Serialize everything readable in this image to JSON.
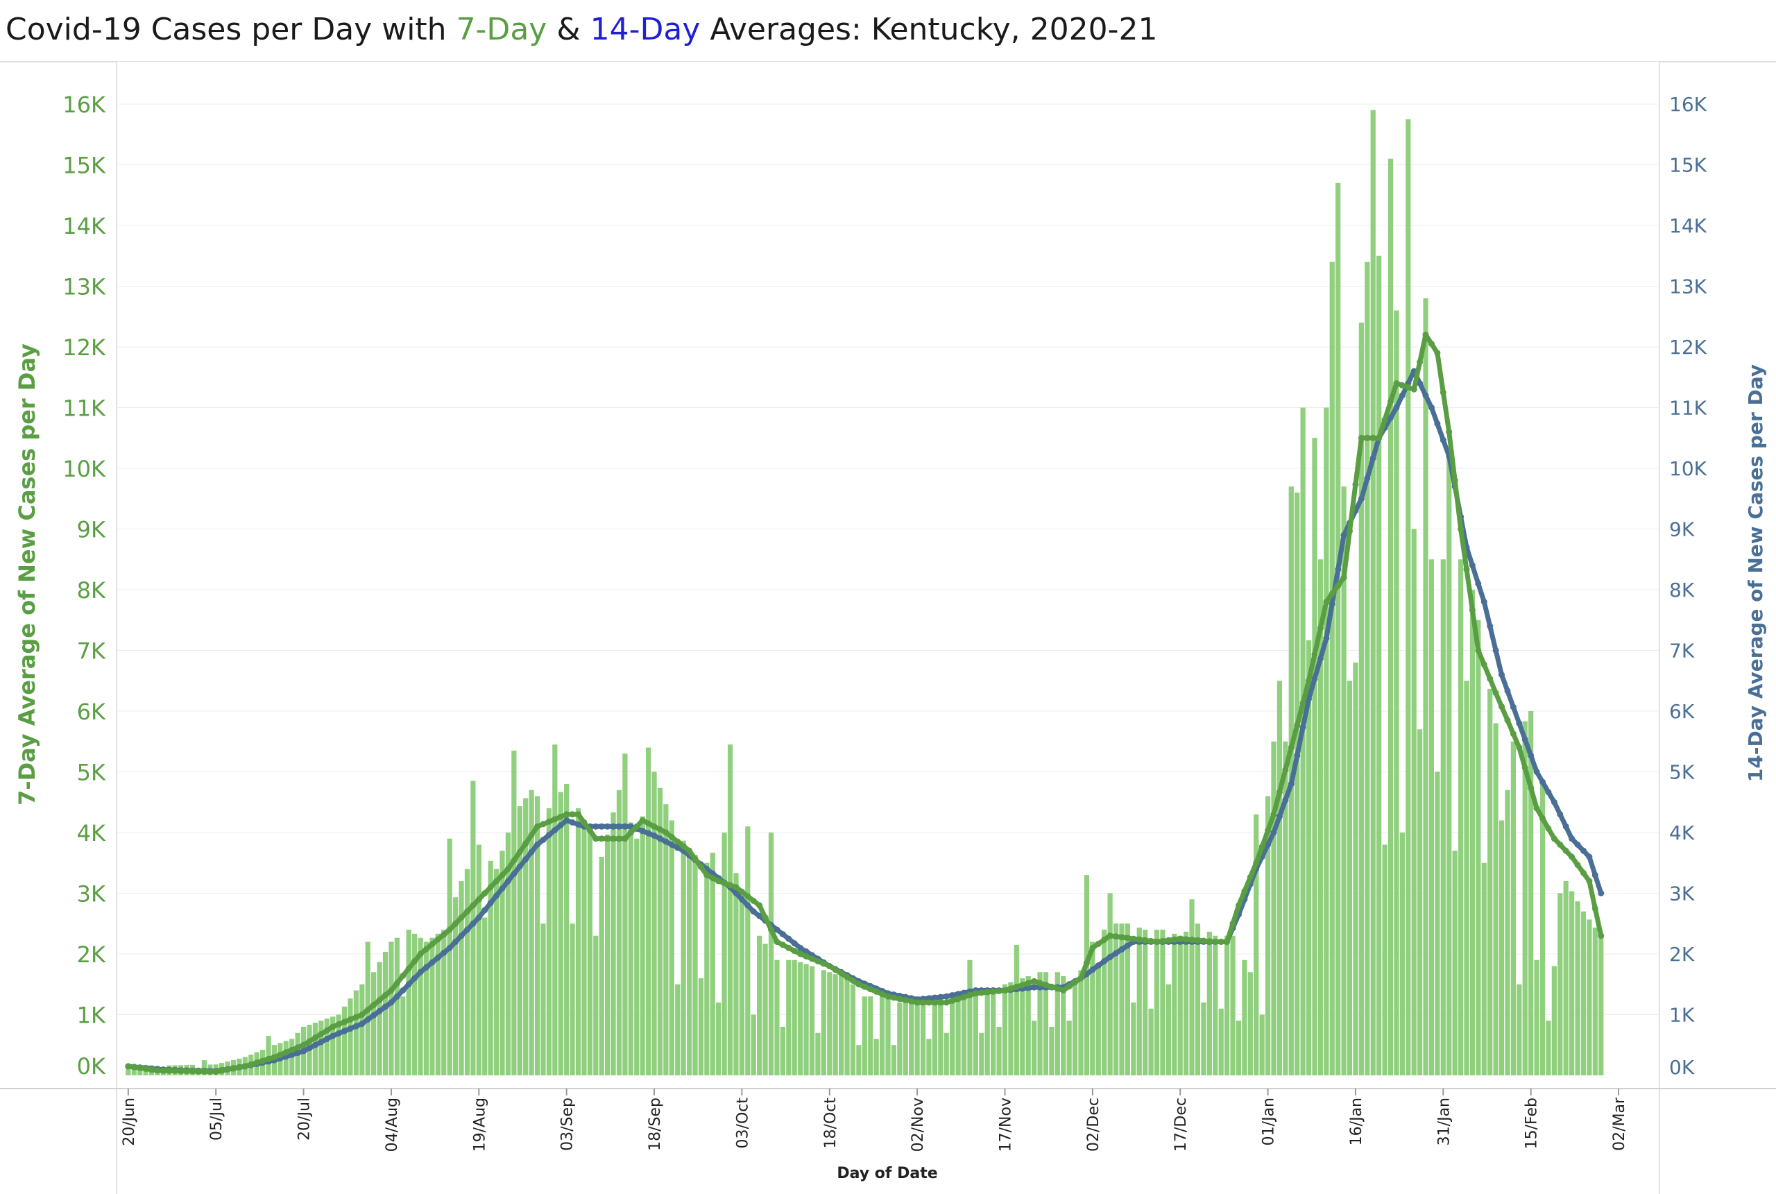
{
  "title": {
    "prefix": "Covid-19 Cases per Day with ",
    "seven_day": "7-Day",
    "amp": " & ",
    "fourteen_day": "14-Day",
    "suffix": " Averages: Kentucky,  2020-21"
  },
  "chart_data": {
    "type": "bar+line",
    "title": "Covid-19 Cases per Day with 7-Day & 14-Day Averages: Kentucky,  2020-21",
    "xlabel": "Day of Date",
    "ylabel_left": "7-Day Average of New Cases per Day",
    "ylabel_right": "14-Day Average of New Cases per Day",
    "ylim": [
      0,
      16000
    ],
    "y_ticks": [
      0,
      1000,
      2000,
      3000,
      4000,
      5000,
      6000,
      7000,
      8000,
      9000,
      10000,
      11000,
      12000,
      13000,
      14000,
      15000,
      16000
    ],
    "y_tick_labels": [
      "0K",
      "1K",
      "2K",
      "3K",
      "4K",
      "5K",
      "6K",
      "7K",
      "8K",
      "9K",
      "10K",
      "11K",
      "12K",
      "13K",
      "14K",
      "15K",
      "16K"
    ],
    "x_ticks": [
      {
        "day": 0,
        "label": "20/Jun"
      },
      {
        "day": 15,
        "label": "05/Jul"
      },
      {
        "day": 30,
        "label": "20/Jul"
      },
      {
        "day": 45,
        "label": "04/Aug"
      },
      {
        "day": 60,
        "label": "19/Aug"
      },
      {
        "day": 75,
        "label": "03/Sep"
      },
      {
        "day": 90,
        "label": "18/Sep"
      },
      {
        "day": 105,
        "label": "03/Oct"
      },
      {
        "day": 120,
        "label": "18/Oct"
      },
      {
        "day": 135,
        "label": "02/Nov"
      },
      {
        "day": 150,
        "label": "17/Nov"
      },
      {
        "day": 165,
        "label": "02/Dec"
      },
      {
        "day": 180,
        "label": "17/Dec"
      },
      {
        "day": 195,
        "label": "01/Jan"
      },
      {
        "day": 210,
        "label": "16/Jan"
      },
      {
        "day": 225,
        "label": "31/Jan"
      },
      {
        "day": 240,
        "label": "15/Feb"
      },
      {
        "day": 255,
        "label": "02/Mar"
      }
    ],
    "x_domain_days": [
      -2,
      262
    ],
    "grid": true,
    "colors": {
      "bars": "#8fcf7d",
      "seven_day": "#5a9e43",
      "fourteen_day": "#4a6f96"
    },
    "daily_cases_anchors": [
      [
        0,
        180
      ],
      [
        5,
        160
      ],
      [
        10,
        170
      ],
      [
        15,
        180
      ],
      [
        20,
        300
      ],
      [
        25,
        500
      ],
      [
        28,
        600
      ],
      [
        30,
        800
      ],
      [
        33,
        900
      ],
      [
        36,
        1000
      ],
      [
        39,
        1400
      ],
      [
        42,
        1700
      ],
      [
        45,
        2200
      ],
      [
        48,
        2400
      ],
      [
        51,
        2200
      ],
      [
        54,
        2400
      ],
      [
        57,
        3200
      ],
      [
        60,
        3800
      ],
      [
        63,
        3400
      ],
      [
        66,
        4300
      ],
      [
        69,
        4700
      ],
      [
        72,
        4400
      ],
      [
        75,
        4800
      ],
      [
        78,
        4200
      ],
      [
        81,
        3600
      ],
      [
        84,
        4700
      ],
      [
        87,
        3900
      ],
      [
        90,
        5000
      ],
      [
        93,
        4200
      ],
      [
        96,
        3700
      ],
      [
        99,
        3500
      ],
      [
        102,
        4000
      ],
      [
        105,
        3000
      ],
      [
        108,
        2300
      ],
      [
        111,
        1900
      ],
      [
        114,
        1900
      ],
      [
        117,
        1800
      ],
      [
        120,
        1700
      ],
      [
        123,
        1600
      ],
      [
        126,
        1300
      ],
      [
        129,
        1300
      ],
      [
        132,
        1200
      ],
      [
        135,
        1300
      ],
      [
        138,
        1300
      ],
      [
        141,
        1200
      ],
      [
        144,
        1400
      ],
      [
        147,
        1400
      ],
      [
        150,
        1500
      ],
      [
        153,
        1600
      ],
      [
        156,
        1700
      ],
      [
        159,
        1700
      ],
      [
        162,
        1500
      ],
      [
        165,
        2200
      ],
      [
        168,
        2500
      ],
      [
        171,
        2500
      ],
      [
        174,
        2400
      ],
      [
        177,
        2400
      ],
      [
        180,
        2300
      ],
      [
        183,
        2500
      ],
      [
        186,
        2300
      ],
      [
        189,
        2300
      ],
      [
        192,
        1700
      ],
      [
        195,
        4600
      ],
      [
        198,
        5500
      ],
      [
        201,
        6500
      ],
      [
        204,
        8500
      ],
      [
        207,
        8800
      ],
      [
        210,
        11500
      ],
      [
        213,
        8500
      ],
      [
        216,
        10500
      ],
      [
        219,
        12200
      ],
      [
        222,
        12800
      ],
      [
        225,
        11000
      ],
      [
        228,
        8500
      ],
      [
        231,
        7500
      ],
      [
        234,
        5800
      ],
      [
        237,
        5500
      ],
      [
        240,
        6000
      ],
      [
        243,
        4200
      ],
      [
        246,
        3200
      ],
      [
        249,
        2700
      ],
      [
        252,
        2300
      ]
    ],
    "daily_cases_spikes": [
      [
        6,
        100
      ],
      [
        13,
        250
      ],
      [
        24,
        650
      ],
      [
        41,
        2200
      ],
      [
        55,
        3900
      ],
      [
        59,
        4850
      ],
      [
        66,
        5350
      ],
      [
        73,
        5450
      ],
      [
        85,
        5300
      ],
      [
        89,
        5400
      ],
      [
        103,
        5450
      ],
      [
        106,
        4100
      ],
      [
        110,
        4000
      ],
      [
        144,
        1900
      ],
      [
        152,
        2150
      ],
      [
        164,
        3300
      ],
      [
        168,
        3000
      ],
      [
        182,
        2900
      ],
      [
        193,
        4300
      ],
      [
        196,
        5500
      ],
      [
        197,
        6500
      ],
      [
        199,
        9700
      ],
      [
        200,
        9600
      ],
      [
        201,
        11000
      ],
      [
        203,
        10500
      ],
      [
        205,
        11000
      ],
      [
        206,
        13400
      ],
      [
        207,
        14700
      ],
      [
        209,
        6500
      ],
      [
        211,
        12400
      ],
      [
        212,
        13400
      ],
      [
        213,
        15900
      ],
      [
        214,
        13500
      ],
      [
        215,
        3800
      ],
      [
        216,
        15100
      ],
      [
        217,
        12600
      ],
      [
        219,
        15750
      ],
      [
        220,
        9000
      ],
      [
        221,
        5700
      ],
      [
        223,
        8500
      ],
      [
        225,
        8500
      ],
      [
        229,
        6500
      ],
      [
        230,
        8000
      ],
      [
        235,
        4200
      ],
      [
        236,
        4700
      ],
      [
        238,
        1500
      ],
      [
        243,
        900
      ],
      [
        245,
        3000
      ]
    ],
    "daily_cases_dips": [
      [
        12,
        80
      ],
      [
        47,
        1300
      ],
      [
        61,
        2600
      ],
      [
        71,
        2500
      ],
      [
        76,
        2500
      ],
      [
        80,
        2300
      ],
      [
        94,
        1500
      ],
      [
        98,
        1600
      ],
      [
        101,
        1200
      ],
      [
        107,
        1000
      ],
      [
        112,
        800
      ],
      [
        118,
        700
      ],
      [
        125,
        500
      ],
      [
        128,
        600
      ],
      [
        131,
        500
      ],
      [
        137,
        600
      ],
      [
        140,
        700
      ],
      [
        146,
        700
      ],
      [
        149,
        800
      ],
      [
        155,
        900
      ],
      [
        158,
        800
      ],
      [
        161,
        900
      ],
      [
        166,
        1800
      ],
      [
        172,
        1200
      ],
      [
        175,
        1100
      ],
      [
        178,
        1500
      ],
      [
        184,
        1200
      ],
      [
        187,
        1100
      ],
      [
        190,
        900
      ],
      [
        194,
        1000
      ],
      [
        210,
        6800
      ],
      [
        218,
        4000
      ],
      [
        224,
        5000
      ],
      [
        227,
        3700
      ],
      [
        232,
        3500
      ],
      [
        241,
        1900
      ],
      [
        244,
        1800
      ]
    ],
    "avg7_anchors": [
      [
        0,
        150
      ],
      [
        5,
        80
      ],
      [
        10,
        70
      ],
      [
        15,
        60
      ],
      [
        20,
        150
      ],
      [
        25,
        300
      ],
      [
        30,
        500
      ],
      [
        35,
        800
      ],
      [
        40,
        1000
      ],
      [
        45,
        1400
      ],
      [
        50,
        2000
      ],
      [
        55,
        2400
      ],
      [
        60,
        2900
      ],
      [
        65,
        3400
      ],
      [
        70,
        4100
      ],
      [
        75,
        4300
      ],
      [
        77,
        4300
      ],
      [
        80,
        3900
      ],
      [
        85,
        3900
      ],
      [
        88,
        4200
      ],
      [
        92,
        4000
      ],
      [
        96,
        3700
      ],
      [
        99,
        3300
      ],
      [
        101,
        3200
      ],
      [
        104,
        3100
      ],
      [
        108,
        2800
      ],
      [
        111,
        2200
      ],
      [
        115,
        2000
      ],
      [
        120,
        1800
      ],
      [
        125,
        1500
      ],
      [
        130,
        1300
      ],
      [
        135,
        1200
      ],
      [
        140,
        1200
      ],
      [
        145,
        1350
      ],
      [
        150,
        1400
      ],
      [
        155,
        1550
      ],
      [
        160,
        1400
      ],
      [
        163,
        1600
      ],
      [
        165,
        2100
      ],
      [
        168,
        2300
      ],
      [
        172,
        2250
      ],
      [
        176,
        2200
      ],
      [
        180,
        2250
      ],
      [
        186,
        2200
      ],
      [
        188,
        2200
      ],
      [
        190,
        2800
      ],
      [
        193,
        3500
      ],
      [
        196,
        4300
      ],
      [
        199,
        5400
      ],
      [
        202,
        6500
      ],
      [
        205,
        7800
      ],
      [
        208,
        8200
      ],
      [
        211,
        10500
      ],
      [
        214,
        10500
      ],
      [
        217,
        11400
      ],
      [
        220,
        11300
      ],
      [
        222,
        12200
      ],
      [
        224,
        11900
      ],
      [
        226,
        10600
      ],
      [
        228,
        9000
      ],
      [
        231,
        7000
      ],
      [
        234,
        6300
      ],
      [
        238,
        5400
      ],
      [
        241,
        4400
      ],
      [
        244,
        3900
      ],
      [
        247,
        3600
      ],
      [
        250,
        3200
      ],
      [
        252,
        2300
      ]
    ],
    "avg14_anchors": [
      [
        0,
        150
      ],
      [
        5,
        100
      ],
      [
        10,
        80
      ],
      [
        15,
        70
      ],
      [
        20,
        150
      ],
      [
        25,
        250
      ],
      [
        30,
        400
      ],
      [
        35,
        650
      ],
      [
        40,
        850
      ],
      [
        45,
        1200
      ],
      [
        50,
        1700
      ],
      [
        55,
        2100
      ],
      [
        60,
        2600
      ],
      [
        65,
        3200
      ],
      [
        70,
        3800
      ],
      [
        75,
        4200
      ],
      [
        78,
        4100
      ],
      [
        82,
        4100
      ],
      [
        86,
        4100
      ],
      [
        90,
        3950
      ],
      [
        95,
        3700
      ],
      [
        99,
        3400
      ],
      [
        103,
        3100
      ],
      [
        107,
        2700
      ],
      [
        111,
        2400
      ],
      [
        115,
        2100
      ],
      [
        120,
        1800
      ],
      [
        125,
        1550
      ],
      [
        130,
        1350
      ],
      [
        135,
        1250
      ],
      [
        140,
        1300
      ],
      [
        145,
        1400
      ],
      [
        150,
        1400
      ],
      [
        155,
        1450
      ],
      [
        160,
        1450
      ],
      [
        163,
        1600
      ],
      [
        168,
        1950
      ],
      [
        172,
        2200
      ],
      [
        176,
        2200
      ],
      [
        181,
        2200
      ],
      [
        188,
        2200
      ],
      [
        190,
        2650
      ],
      [
        193,
        3400
      ],
      [
        196,
        4000
      ],
      [
        199,
        4800
      ],
      [
        202,
        6200
      ],
      [
        205,
        7200
      ],
      [
        208,
        8900
      ],
      [
        211,
        9500
      ],
      [
        214,
        10500
      ],
      [
        217,
        11000
      ],
      [
        220,
        11600
      ],
      [
        223,
        11000
      ],
      [
        226,
        10200
      ],
      [
        229,
        8700
      ],
      [
        232,
        7800
      ],
      [
        235,
        6600
      ],
      [
        238,
        5800
      ],
      [
        241,
        5000
      ],
      [
        244,
        4500
      ],
      [
        247,
        3900
      ],
      [
        250,
        3600
      ],
      [
        252,
        3000
      ]
    ]
  }
}
